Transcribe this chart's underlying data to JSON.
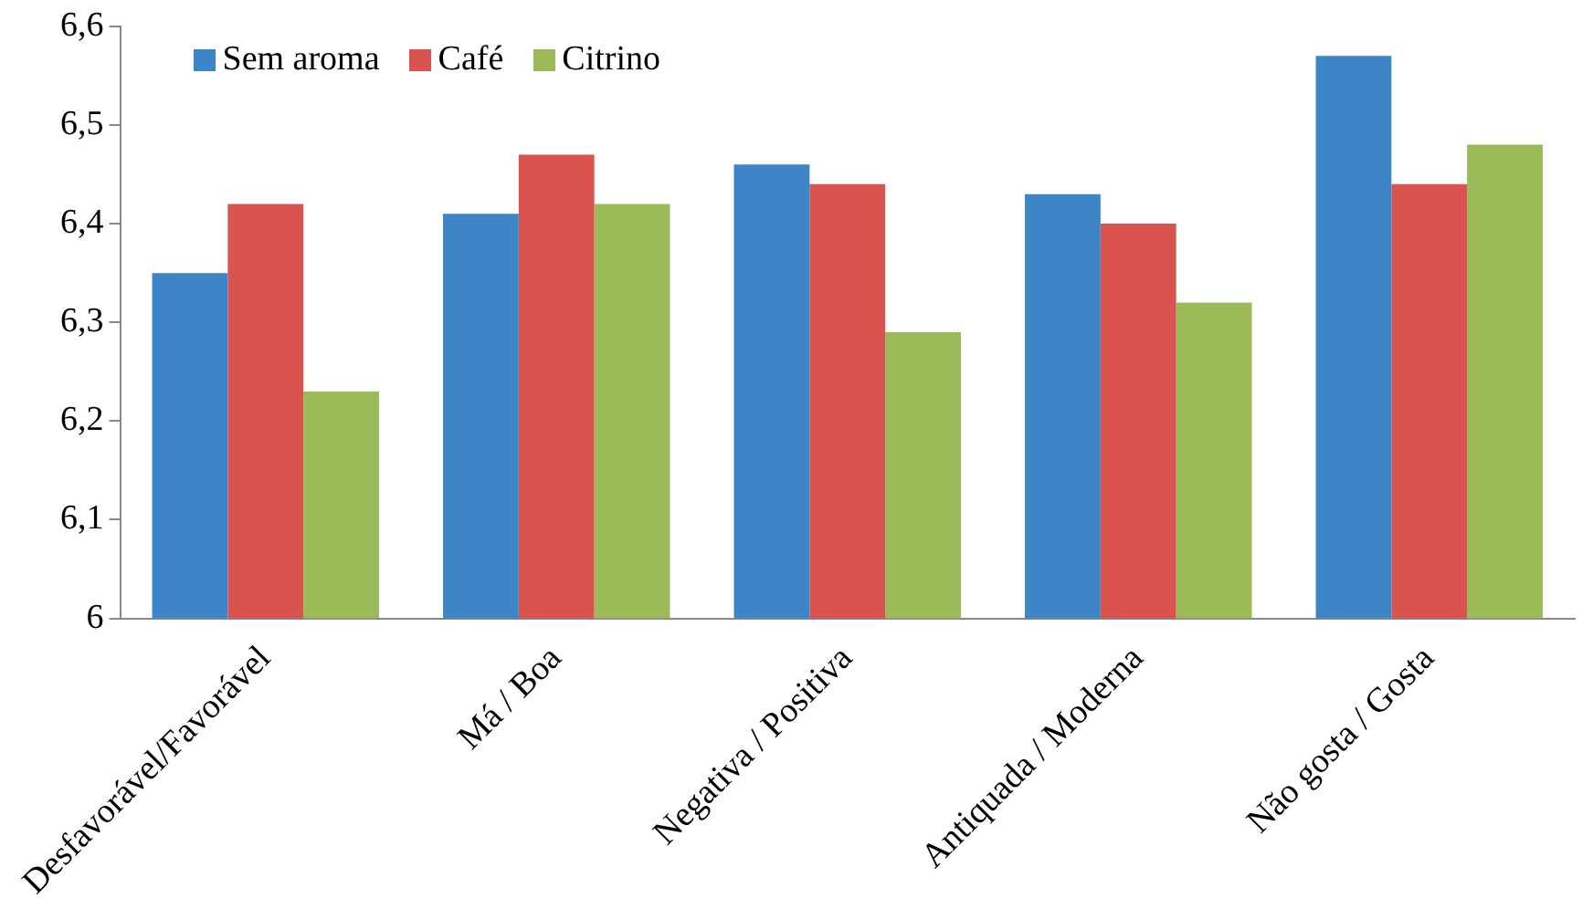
{
  "chart_data": {
    "type": "bar",
    "categories": [
      "Desfavorável/Favorável",
      "Má / Boa",
      "Negativa / Positiva",
      "Antiquada / Moderna",
      "Não gosta / Gosta"
    ],
    "series": [
      {
        "name": "Sem aroma",
        "color": "#3d85c6",
        "values": [
          6.35,
          6.41,
          6.46,
          6.43,
          6.57
        ]
      },
      {
        "name": "Café",
        "color": "#d9534f",
        "values": [
          6.42,
          6.47,
          6.44,
          6.4,
          6.44
        ]
      },
      {
        "name": "Citrino",
        "color": "#9bbb59",
        "values": [
          6.23,
          6.42,
          6.29,
          6.32,
          6.48
        ]
      }
    ],
    "ylim": [
      6,
      6.6
    ],
    "yticks": [
      6,
      {
        "value": 6.1,
        "label": "6,1"
      },
      {
        "value": 6.2,
        "label": "6,2"
      },
      {
        "value": 6.3,
        "label": "6,3"
      },
      {
        "value": 6.4,
        "label": "6,4"
      },
      {
        "value": 6.5,
        "label": "6,5"
      },
      {
        "value": 6.6,
        "label": "6,6"
      }
    ],
    "grid": false,
    "legend": "top left"
  }
}
